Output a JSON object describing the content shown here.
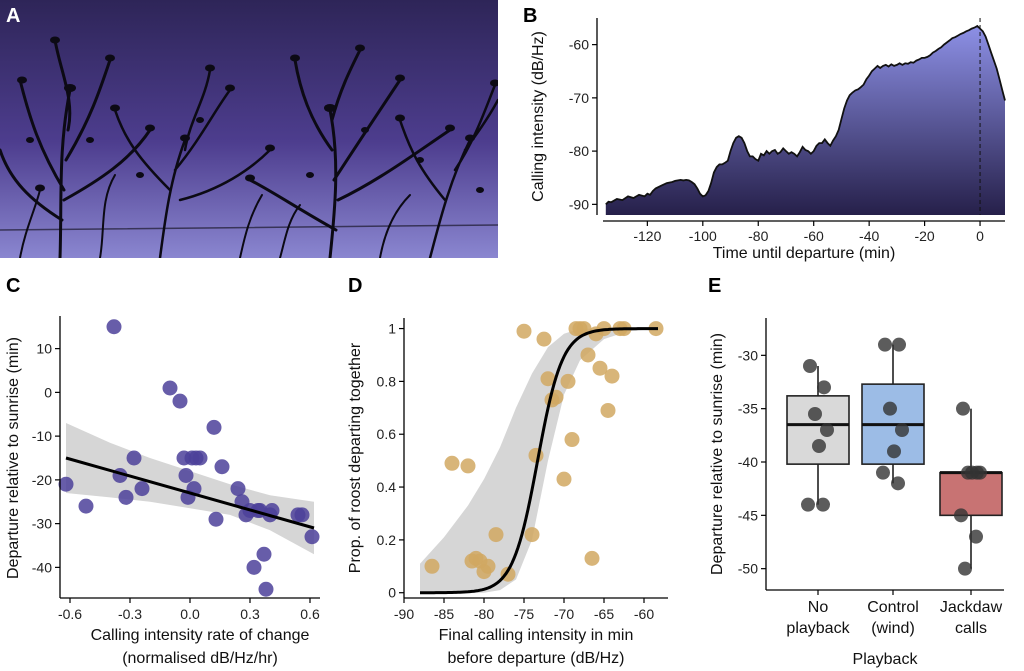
{
  "panels": {
    "a": "A",
    "b": "B",
    "c": "C",
    "d": "D",
    "e": "E"
  },
  "colors": {
    "sky_top": "#2e2558",
    "sky_mid": "#4d3d8e",
    "sky_bottom": "#8a86d0",
    "area_top": "#8d90e6",
    "area_bottom": "#26204a",
    "purple_point": "#4c419a",
    "gold_point": "#d1a862",
    "ribbon": "#d6d6d6",
    "box_grey": "#d9d9d9",
    "box_blue": "#9cbce6",
    "box_red": "#c87373",
    "dot_dark": "#333333"
  },
  "chart_data": [
    {
      "id": "B",
      "type": "area",
      "title": "",
      "xlabel": "Time until departure (min)",
      "ylabel": "Calling intensity (dB/Hz)",
      "xlim": [
        -136,
        9
      ],
      "ylim": [
        -92,
        -55
      ],
      "xticks": [
        -120,
        -100,
        -80,
        -60,
        -40,
        -20,
        0
      ],
      "yticks": [
        -90,
        -80,
        -70,
        -60
      ],
      "tick_labels_x": [
        "-120",
        "-100",
        "-80",
        "-60",
        "-40",
        "-20",
        "0"
      ],
      "tick_labels_y": [
        "-90",
        "-80",
        "-70",
        "-60"
      ],
      "vline_x": 0,
      "x": [
        -135,
        -134,
        -133,
        -131,
        -129,
        -127,
        -125,
        -123,
        -121,
        -120,
        -119,
        -118,
        -117,
        -115,
        -113,
        -111,
        -110,
        -109,
        -108,
        -107,
        -106,
        -105,
        -104,
        -103,
        -102,
        -101,
        -100,
        -99,
        -98,
        -97,
        -96,
        -95,
        -94,
        -93,
        -92,
        -91,
        -90,
        -89,
        -88,
        -87,
        -86,
        -85,
        -84,
        -83,
        -82,
        -81,
        -80,
        -79,
        -78,
        -77,
        -76,
        -75,
        -74,
        -73,
        -72,
        -71,
        -70,
        -69,
        -68,
        -67,
        -66,
        -65,
        -64,
        -63,
        -62,
        -61,
        -60,
        -59,
        -58,
        -57,
        -56,
        -55,
        -54,
        -53,
        -52,
        -51,
        -50,
        -49,
        -48,
        -47,
        -46,
        -45,
        -44,
        -43,
        -42,
        -41,
        -40,
        -39,
        -38,
        -37,
        -36,
        -35,
        -34,
        -33,
        -32,
        -31,
        -30,
        -29,
        -28,
        -27,
        -26,
        -25,
        -24,
        -23,
        -22,
        -21,
        -20,
        -19,
        -18,
        -17,
        -16,
        -15,
        -14,
        -13,
        -12,
        -11,
        -10,
        -9,
        -8,
        -7,
        -6,
        -5,
        -4,
        -3,
        -2,
        -1,
        0,
        1,
        2,
        3,
        4,
        5,
        6,
        7,
        8,
        9
      ],
      "values": [
        -90,
        -89.5,
        -89.6,
        -89,
        -89.2,
        -88.5,
        -88.8,
        -88.2,
        -88.5,
        -88.0,
        -88.2,
        -87.5,
        -87.0,
        -86.5,
        -86.0,
        -85.8,
        -85.6,
        -85.5,
        -85.4,
        -85.5,
        -85.4,
        -85.5,
        -85.8,
        -86.2,
        -87,
        -88,
        -88.5,
        -88.3,
        -87.5,
        -86.0,
        -84.0,
        -83.0,
        -82.5,
        -82.5,
        -82.2,
        -81.8,
        -80.0,
        -78.5,
        -77.5,
        -77.2,
        -77.5,
        -78.5,
        -80.0,
        -81.0,
        -81.0,
        -81.5,
        -81.8,
        -80.5,
        -80.8,
        -80.0,
        -80.5,
        -80.0,
        -79.8,
        -80.5,
        -80.2,
        -79.5,
        -80.0,
        -80.5,
        -80.2,
        -80.5,
        -81.0,
        -80.2,
        -79.2,
        -79.8,
        -80.0,
        -80.5,
        -80.0,
        -79.0,
        -78.5,
        -78.5,
        -77.8,
        -78.5,
        -79.0,
        -78.0,
        -77.2,
        -76.0,
        -74.0,
        -72.0,
        -70.5,
        -69.5,
        -69.0,
        -68.6,
        -68.4,
        -68.0,
        -67.5,
        -66.5,
        -65.8,
        -65.0,
        -64.5,
        -64.0,
        -64.4,
        -64.0,
        -63.8,
        -64.1,
        -63.7,
        -64.0,
        -63.8,
        -63.5,
        -63.8,
        -63.5,
        -63.6,
        -63.3,
        -63.4,
        -63.0,
        -62.8,
        -62.5,
        -62.5,
        -62.3,
        -62.0,
        -61.5,
        -61.2,
        -60.8,
        -60.5,
        -60.0,
        -59.6,
        -59.2,
        -58.8,
        -58.6,
        -58.3,
        -58.0,
        -57.8,
        -57.5,
        -57.3,
        -57.0,
        -56.8,
        -56.5,
        -57.0,
        -57.5,
        -58.5,
        -60.0,
        -61.5,
        -63.0,
        -64.5,
        -66.5,
        -68.5,
        -70.5
      ]
    },
    {
      "id": "C",
      "type": "scatter",
      "xlabel_line1": "Calling intensity rate of change",
      "xlabel_line2": "(normalised dB/Hz/hr)",
      "ylabel": "Departure relative to sunrise (min)",
      "xlim": [
        -0.65,
        0.65
      ],
      "ylim": [
        -47,
        17
      ],
      "xticks": [
        -0.6,
        -0.3,
        0.0,
        0.3,
        0.6
      ],
      "yticks": [
        10,
        0,
        -10,
        -20,
        -30,
        -40
      ],
      "tick_labels_x": [
        "-0.6",
        "-0.3",
        "0.0",
        "0.3",
        "0.6"
      ],
      "tick_labels_y": [
        "10",
        "0",
        "-10",
        "-20",
        "-30",
        "-40"
      ],
      "points_x": [
        -0.62,
        -0.52,
        -0.38,
        -0.35,
        -0.32,
        -0.28,
        -0.24,
        -0.1,
        -0.05,
        -0.03,
        -0.02,
        -0.01,
        0.01,
        0.02,
        0.03,
        0.05,
        0.12,
        0.13,
        0.16,
        0.24,
        0.26,
        0.28,
        0.3,
        0.32,
        0.34,
        0.35,
        0.37,
        0.38,
        0.4,
        0.41,
        0.54,
        0.56,
        0.61
      ],
      "points_y": [
        -21,
        -26,
        15,
        -19,
        -24,
        -15,
        -22,
        1,
        -2,
        -15,
        -19,
        -24,
        -15,
        -22,
        -15,
        -15,
        -8,
        -29,
        -17,
        -22,
        -25,
        -28,
        -27,
        -40,
        -27,
        -27,
        -37,
        -45,
        -28,
        -27,
        -28,
        -28,
        -33
      ],
      "fit_x": [
        -0.62,
        0.62
      ],
      "fit_y": [
        -15,
        -31
      ],
      "ci_upper_x": [
        -0.62,
        -0.4,
        -0.2,
        0.0,
        0.2,
        0.4,
        0.62
      ],
      "ci_upper_y": [
        -7,
        -11.5,
        -15,
        -18,
        -21,
        -23.5,
        -25
      ],
      "ci_lower_x": [
        -0.62,
        -0.4,
        -0.2,
        0.0,
        0.2,
        0.4,
        0.62
      ],
      "ci_lower_y": [
        -23,
        -24,
        -25,
        -26.5,
        -28,
        -31.5,
        -37
      ]
    },
    {
      "id": "D",
      "type": "scatter",
      "xlabel_line1": "Final calling intensity in min",
      "xlabel_line2": "before departure (dB/Hz)",
      "ylabel": "Prop. of roost departing together",
      "xlim": [
        -90,
        -57
      ],
      "ylim": [
        -0.02,
        1.04
      ],
      "xticks": [
        -90,
        -85,
        -80,
        -75,
        -70,
        -65,
        -60
      ],
      "yticks": [
        0,
        0.2,
        0.4,
        0.6,
        0.8,
        1
      ],
      "tick_labels_x": [
        "-90",
        "-85",
        "-80",
        "-75",
        "-70",
        "-65",
        "-60"
      ],
      "tick_labels_y": [
        "0",
        "0.2",
        "0.4",
        "0.6",
        "0.8",
        "1"
      ],
      "points_x": [
        -86.5,
        -84,
        -82,
        -81.5,
        -81,
        -80.5,
        -80,
        -79.5,
        -78.5,
        -77,
        -75,
        -74,
        -73.5,
        -72.5,
        -72,
        -71.5,
        -71,
        -70,
        -69.5,
        -69,
        -68.5,
        -68,
        -67.5,
        -67,
        -66.5,
        -66,
        -65.5,
        -65,
        -64.5,
        -64,
        -63,
        -62.5,
        -58.5
      ],
      "points_y": [
        0.1,
        0.49,
        0.48,
        0.12,
        0.13,
        0.12,
        0.08,
        0.1,
        0.22,
        0.07,
        0.99,
        0.22,
        0.52,
        0.96,
        0.81,
        0.73,
        0.74,
        0.43,
        0.8,
        0.58,
        1.0,
        1.0,
        1.0,
        0.9,
        0.13,
        0.98,
        0.85,
        1.0,
        0.69,
        0.82,
        1.0,
        1.0,
        1.0
      ],
      "curve_mid": -73.3,
      "curve_scale": 1.55,
      "ci_upper_x": [
        -88,
        -85,
        -82,
        -80,
        -78,
        -76,
        -74,
        -72,
        -70,
        -68,
        -65,
        -62,
        -58
      ],
      "ci_upper_y": [
        0.11,
        0.21,
        0.33,
        0.43,
        0.55,
        0.7,
        0.83,
        0.93,
        0.98,
        1.0,
        1.0,
        1.0,
        1.0
      ],
      "ci_lower_x": [
        -88,
        -85,
        -82,
        -80,
        -78,
        -76,
        -74,
        -72,
        -70,
        -68,
        -65,
        -62,
        -58
      ],
      "ci_lower_y": [
        0.0,
        0.0,
        0.0,
        0.0,
        0.01,
        0.05,
        0.2,
        0.5,
        0.75,
        0.88,
        0.96,
        0.99,
        1.0
      ]
    },
    {
      "id": "E",
      "type": "box",
      "xlabel": "Playback",
      "ylabel": "Departure relative to sunrise (min)",
      "ylim": [
        -52,
        -26.5
      ],
      "yticks": [
        -30,
        -35,
        -40,
        -45,
        -50
      ],
      "tick_labels_y": [
        "-30",
        "-35",
        "-40",
        "-45",
        "-50"
      ],
      "categories": [
        {
          "line1": "No",
          "line2": "playback"
        },
        {
          "line1": "Control",
          "line2": "(wind)"
        },
        {
          "line1": "Jackdaw",
          "line2": "calls"
        }
      ],
      "boxes": [
        {
          "q1": -40.2,
          "median": -36.5,
          "q3": -33.8,
          "wmin": -44,
          "wmax": -31,
          "fill": "#d9d9d9"
        },
        {
          "q1": -40.2,
          "median": -36.5,
          "q3": -32.7,
          "wmin": -42,
          "wmax": -29,
          "fill": "#9cbce6"
        },
        {
          "q1": -45,
          "median": -41,
          "q3": -41,
          "wmin": -50,
          "wmax": -35,
          "fill": "#c87373"
        }
      ],
      "points": [
        [
          -31,
          -33,
          -35.5,
          -37,
          -38.5,
          -44,
          -44
        ],
        [
          -29,
          -29,
          -35,
          -37,
          -39,
          -41,
          -42
        ],
        [
          -35,
          -41,
          -41,
          -41,
          -41,
          -45,
          -47,
          -50
        ]
      ]
    }
  ]
}
